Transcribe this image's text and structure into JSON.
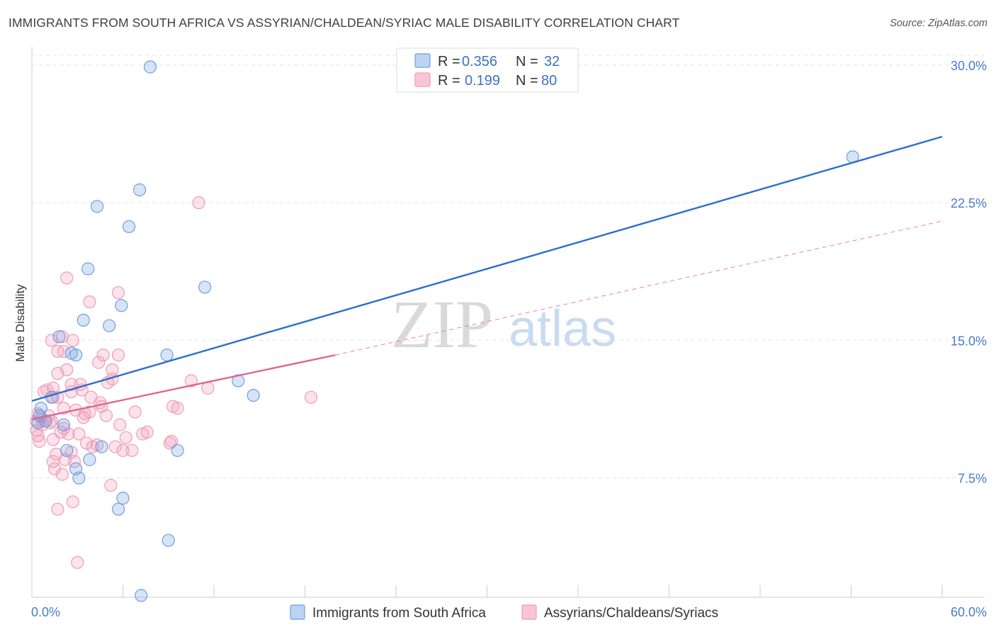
{
  "title": "IMMIGRANTS FROM SOUTH AFRICA VS ASSYRIAN/CHALDEAN/SYRIAC MALE DISABILITY CORRELATION CHART",
  "source": "Source: ZipAtlas.com",
  "watermark": {
    "zip": "ZIP",
    "atlas": "atlas"
  },
  "legend": {
    "rows": [
      {
        "r_label": "R =",
        "r_value": "0.356",
        "n_label": "N =",
        "n_value": "32"
      },
      {
        "r_label": "R =",
        "r_value": "0.199",
        "n_label": "N =",
        "n_value": "80"
      }
    ]
  },
  "chart_data": {
    "type": "scatter",
    "title": "IMMIGRANTS FROM SOUTH AFRICA VS ASSYRIAN/CHALDEAN/SYRIAC MALE DISABILITY CORRELATION CHART",
    "xlabel": "",
    "ylabel": "Male Disability",
    "xlim": [
      0,
      60
    ],
    "ylim": [
      1.0,
      31.0
    ],
    "x_tick_labels": [
      "0.0%",
      "60.0%"
    ],
    "y_ticks": [
      7.5,
      15.0,
      22.5,
      30.0
    ],
    "y_tick_labels": [
      "7.5%",
      "15.0%",
      "22.5%",
      "30.0%"
    ],
    "grid": true,
    "colors": {
      "blue": "#6f9fe0",
      "blue_line": "#2a6fcc",
      "pink": "#f09bb8",
      "pink_line": "#e0658f"
    },
    "series": [
      {
        "name": "Immigrants from South Africa",
        "color": "blue",
        "R": 0.356,
        "N": 32,
        "trend": {
          "x0": 0,
          "y0": 11.7,
          "x1": 60,
          "y1": 26.1
        },
        "points": [
          [
            0.4,
            10.5
          ],
          [
            0.5,
            10.9
          ],
          [
            0.6,
            11.3
          ],
          [
            0.9,
            10.6
          ],
          [
            1.3,
            11.9
          ],
          [
            1.8,
            15.2
          ],
          [
            2.1,
            10.4
          ],
          [
            2.3,
            9.0
          ],
          [
            2.6,
            14.3
          ],
          [
            2.9,
            8.0
          ],
          [
            2.9,
            14.2
          ],
          [
            3.1,
            7.5
          ],
          [
            3.4,
            16.1
          ],
          [
            3.7,
            18.9
          ],
          [
            3.8,
            8.5
          ],
          [
            4.3,
            22.3
          ],
          [
            4.6,
            9.2
          ],
          [
            5.1,
            15.8
          ],
          [
            5.7,
            5.8
          ],
          [
            5.9,
            16.9
          ],
          [
            6.0,
            6.4
          ],
          [
            6.4,
            21.2
          ],
          [
            7.1,
            23.2
          ],
          [
            7.2,
            1.1
          ],
          [
            7.8,
            29.9
          ],
          [
            8.9,
            14.2
          ],
          [
            9.0,
            4.1
          ],
          [
            9.6,
            9.0
          ],
          [
            11.4,
            17.9
          ],
          [
            13.6,
            12.8
          ],
          [
            14.6,
            12.0
          ],
          [
            54.1,
            25.0
          ]
        ]
      },
      {
        "name": "Assyrians/Chaldeans/Syriacs",
        "color": "pink",
        "R": 0.199,
        "N": 80,
        "trend": {
          "x0": 0,
          "y0": 10.7,
          "x1": 20,
          "y1": 14.2,
          "x_dash_end": 60,
          "y_dash_end": 21.5
        },
        "points": [
          [
            0.3,
            10.6
          ],
          [
            0.3,
            10.1
          ],
          [
            0.4,
            9.8
          ],
          [
            0.4,
            11.0
          ],
          [
            0.5,
            9.5
          ],
          [
            0.6,
            10.8
          ],
          [
            0.7,
            10.4
          ],
          [
            0.8,
            12.2
          ],
          [
            0.9,
            10.6
          ],
          [
            1.0,
            12.3
          ],
          [
            1.1,
            10.9
          ],
          [
            1.2,
            10.5
          ],
          [
            1.3,
            10.6
          ],
          [
            1.3,
            15.0
          ],
          [
            1.4,
            8.4
          ],
          [
            1.4,
            11.9
          ],
          [
            1.4,
            12.4
          ],
          [
            1.4,
            9.6
          ],
          [
            1.5,
            8.0
          ],
          [
            1.6,
            8.8
          ],
          [
            1.7,
            5.8
          ],
          [
            1.7,
            13.2
          ],
          [
            1.7,
            14.4
          ],
          [
            1.7,
            11.9
          ],
          [
            1.9,
            10.0
          ],
          [
            2.0,
            15.2
          ],
          [
            2.0,
            7.7
          ],
          [
            2.1,
            14.4
          ],
          [
            2.1,
            11.3
          ],
          [
            2.1,
            10.2
          ],
          [
            2.2,
            8.5
          ],
          [
            2.3,
            13.4
          ],
          [
            2.3,
            18.4
          ],
          [
            2.4,
            9.9
          ],
          [
            2.6,
            8.9
          ],
          [
            2.6,
            12.6
          ],
          [
            2.6,
            12.2
          ],
          [
            2.7,
            15.0
          ],
          [
            2.7,
            6.2
          ],
          [
            2.8,
            8.4
          ],
          [
            2.9,
            11.2
          ],
          [
            3.0,
            2.9
          ],
          [
            3.1,
            9.9
          ],
          [
            3.2,
            12.6
          ],
          [
            3.3,
            12.3
          ],
          [
            3.4,
            10.8
          ],
          [
            3.5,
            11.0
          ],
          [
            3.6,
            9.4
          ],
          [
            3.8,
            17.1
          ],
          [
            3.8,
            11.1
          ],
          [
            3.9,
            11.9
          ],
          [
            4.0,
            9.2
          ],
          [
            4.3,
            9.3
          ],
          [
            4.4,
            13.8
          ],
          [
            4.5,
            11.6
          ],
          [
            4.6,
            11.4
          ],
          [
            4.7,
            14.2
          ],
          [
            4.9,
            10.9
          ],
          [
            5.0,
            12.7
          ],
          [
            5.2,
            7.1
          ],
          [
            5.3,
            13.4
          ],
          [
            5.3,
            12.9
          ],
          [
            5.5,
            9.2
          ],
          [
            5.7,
            17.6
          ],
          [
            5.7,
            14.2
          ],
          [
            5.8,
            10.4
          ],
          [
            6.0,
            9.0
          ],
          [
            6.2,
            9.7
          ],
          [
            6.6,
            9.0
          ],
          [
            6.8,
            11.1
          ],
          [
            7.3,
            9.9
          ],
          [
            7.6,
            10.0
          ],
          [
            9.2,
            9.5
          ],
          [
            9.1,
            9.4
          ],
          [
            9.3,
            11.4
          ],
          [
            9.6,
            11.3
          ],
          [
            10.5,
            12.8
          ],
          [
            11.0,
            22.5
          ],
          [
            11.6,
            12.4
          ],
          [
            18.4,
            11.9
          ]
        ]
      }
    ]
  },
  "bottom_legend": {
    "items": [
      {
        "label": "Immigrants from South Africa"
      },
      {
        "label": "Assyrians/Chaldeans/Syriacs"
      }
    ]
  }
}
